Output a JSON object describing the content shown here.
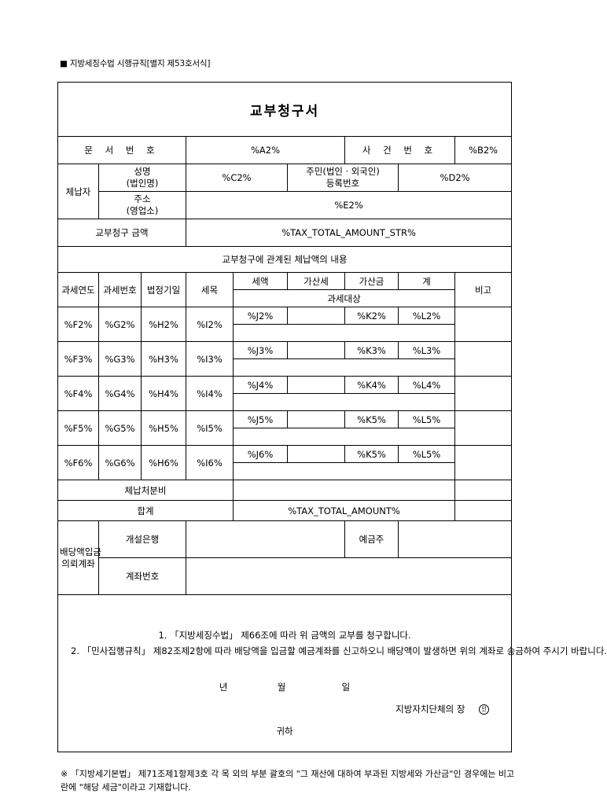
{
  "header": "■ 지방세징수법 시행규칙[별지 제53호서식]",
  "title": "교부청구서",
  "doc_no_label": "문 서 번 호",
  "doc_no_value": "%A2%",
  "case_no_label": "사 건 번 호",
  "case_no_value": "%B2%",
  "payer_label": "체납자",
  "name_label": "성명\n(법인명)",
  "name_value": "%C2%",
  "reg_label": "주민(법인ㆍ외국인)\n등록번호",
  "reg_value": "%D2%",
  "addr_label": "주소\n(영업소)",
  "addr_value": "%E2%",
  "amount_label": "교부청구 금액",
  "amount_value": "%TAX_TOTAL_AMOUNT_STR%",
  "section_title": "교부청구에 관계된 체납액의 내용",
  "cols": {
    "year": "과세연도",
    "taxno": "과세번호",
    "legal_date": "법정기일",
    "item": "세목",
    "tax": "세액",
    "add": "가산세",
    "addamt": "가산금",
    "sum": "계",
    "note": "비고",
    "target": "과세대상"
  },
  "rows": [
    {
      "year": "%F2%",
      "taxno": "%G2%",
      "date": "%H2%",
      "item": "%I2%",
      "tax": "%J2%",
      "add": "",
      "addamt": "%K2%",
      "sum": "%L2%"
    },
    {
      "year": "%F3%",
      "taxno": "%G3%",
      "date": "%H3%",
      "item": "%I3%",
      "tax": "%J3%",
      "add": "",
      "addamt": "%K3%",
      "sum": "%L3%"
    },
    {
      "year": "%F4%",
      "taxno": "%G4%",
      "date": "%H4%",
      "item": "%I4%",
      "tax": "%J4%",
      "add": "",
      "addamt": "%K4%",
      "sum": "%L4%"
    },
    {
      "year": "%F5%",
      "taxno": "%G5%",
      "date": "%H5%",
      "item": "%I5%",
      "tax": "%J5%",
      "add": "",
      "addamt": "%K5%",
      "sum": "%L5%"
    },
    {
      "year": "%F6%",
      "taxno": "%G6%",
      "date": "%H6%",
      "item": "%I6%",
      "tax": "%J6%",
      "add": "",
      "addamt": "%K5%",
      "sum": "%L5%"
    }
  ],
  "disposition_fee_label": "체납처분비",
  "total_label": "합계",
  "total_value": "%TAX_TOTAL_AMOUNT%",
  "account_label": "배당액입금\n의뢰계좌",
  "bank_label": "개설은행",
  "holder_label": "예금주",
  "acctno_label": "계좌번호",
  "statement": {
    "line1": "1. 「지방세징수법」 제66조에 따라 위 금액의 교부를 청구합니다.",
    "line2": "2. 「민사집행규칙」 제82조제2항에 따라 배당액을 입금할 예금계좌를 신고하오니 배당액이 발생하면 위의 계좌로 송금하여 주시기 바랍니다.",
    "year": "년",
    "month": "월",
    "day": "일",
    "signer": "지방자치단체의 장",
    "seal": "인",
    "to": "귀하"
  },
  "footnote": "※ 「지방세기본법」 제71조제1항제3호 각 목 외의 부분 괄호의 \"그 재산에 대하여 부과된 지방세와 가산금\"인 경우에는 비고란에 \"해당 세금\"이라고 기재합니다."
}
